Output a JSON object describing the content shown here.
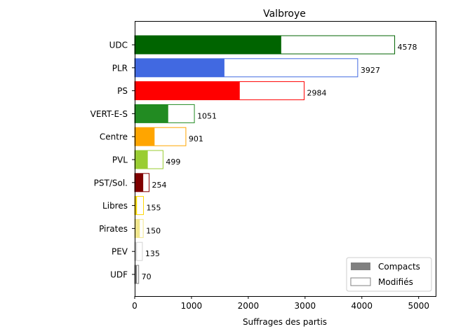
{
  "chart_data": {
    "type": "bar",
    "orientation": "horizontal",
    "title": "Valbroye",
    "xlabel": "Suffrages des partis",
    "ylabel": "",
    "xlim": [
      0,
      5300
    ],
    "xticks": [
      0,
      1000,
      2000,
      3000,
      4000,
      5000
    ],
    "grid": false,
    "legend_position": "lower-right",
    "categories": [
      "UDC",
      "PLR",
      "PS",
      "VERT-E-S",
      "Centre",
      "PVL",
      "PST/Sol.",
      "Libres",
      "Pirates",
      "PEV",
      "UDF"
    ],
    "colors": [
      "#006400",
      "#4169e1",
      "#ff0000",
      "#228b22",
      "#ffa500",
      "#9acd32",
      "#800000",
      "#ffd700",
      "#f0e68c",
      "#d3d3d3",
      "#808080"
    ],
    "series": [
      {
        "name": "Compacts",
        "values": [
          2580,
          1580,
          1850,
          590,
          350,
          230,
          150,
          40,
          90,
          40,
          40
        ]
      },
      {
        "name": "Modifiés",
        "values": [
          1998,
          2347,
          1134,
          461,
          551,
          269,
          104,
          115,
          60,
          95,
          30
        ]
      }
    ],
    "totals": [
      4578,
      3927,
      2984,
      1051,
      901,
      499,
      254,
      155,
      150,
      135,
      70
    ]
  }
}
